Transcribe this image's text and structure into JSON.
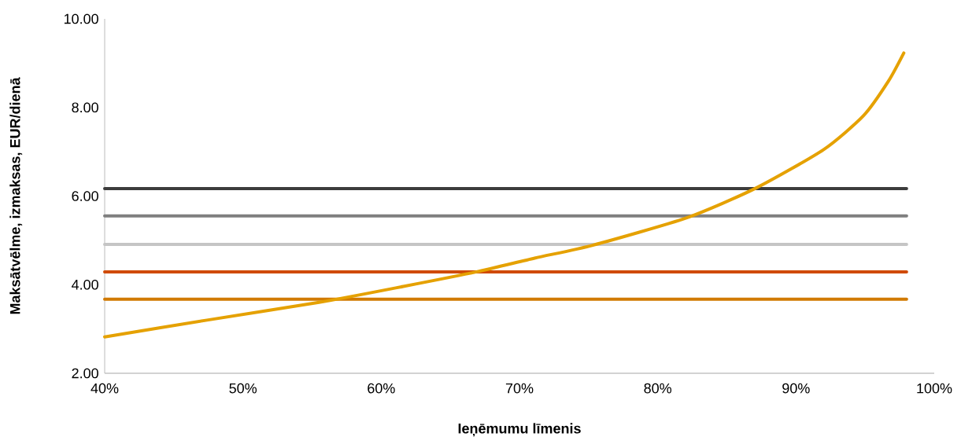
{
  "chart_data": {
    "type": "line",
    "xlabel": "Ieņēmumu līmenis",
    "ylabel": "Maksātvēlme, izmaksas, EUR/dienā",
    "xlim": [
      40,
      100
    ],
    "ylim": [
      2,
      10
    ],
    "xticks": [
      {
        "value": 40,
        "label": "40%"
      },
      {
        "value": 50,
        "label": "50%"
      },
      {
        "value": 60,
        "label": "60%"
      },
      {
        "value": 70,
        "label": "70%"
      },
      {
        "value": 80,
        "label": "80%"
      },
      {
        "value": 90,
        "label": "90%"
      },
      {
        "value": 100,
        "label": "100%"
      }
    ],
    "yticks": [
      {
        "value": 2,
        "label": "2.00"
      },
      {
        "value": 4,
        "label": "4.00"
      },
      {
        "value": 6,
        "label": "6.00"
      },
      {
        "value": 8,
        "label": "8.00"
      },
      {
        "value": 10,
        "label": "10.00"
      }
    ],
    "grid": false,
    "marker": "none",
    "line_style": "solid",
    "series": [
      {
        "color": "#3c3c3c",
        "x": [
          40,
          98
        ],
        "values": [
          6.17,
          6.17
        ]
      },
      {
        "color": "#7f7f7f",
        "x": [
          40,
          98
        ],
        "values": [
          5.55,
          5.55
        ]
      },
      {
        "color": "#c5c5c5",
        "x": [
          40,
          98
        ],
        "values": [
          4.91,
          4.91
        ]
      },
      {
        "color": "#d04a02",
        "x": [
          40,
          98
        ],
        "values": [
          4.29,
          4.29
        ]
      },
      {
        "color": "#d17a00",
        "x": [
          40,
          98
        ],
        "values": [
          3.67,
          3.67
        ]
      },
      {
        "color": "#e5a100",
        "x": [
          40,
          47.4,
          55.5,
          61.6,
          66.9,
          71.1,
          75.3,
          82.1,
          87.1,
          92.0,
          94.9,
          96.7,
          97.8
        ],
        "values": [
          2.82,
          3.2,
          3.6,
          3.96,
          4.29,
          4.6,
          4.89,
          5.51,
          6.18,
          7.05,
          7.82,
          8.6,
          9.23
        ]
      }
    ]
  }
}
